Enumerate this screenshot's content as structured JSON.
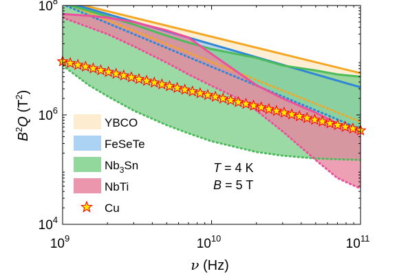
{
  "chart_data": {
    "type": "area",
    "title": "",
    "xlabel": {
      "main": "ν",
      "unit": "(Hz)"
    },
    "ylabel": {
      "base": "B",
      "power": "2",
      "rest": "Q",
      "unit_open": "(T",
      "unit_power": "2",
      "unit_close": ")"
    },
    "x_scale": "log",
    "y_scale": "log",
    "xlim": [
      1000000000.0,
      100000000000.0
    ],
    "ylim": [
      10000.0,
      100000000.0
    ],
    "x_ticks": [
      {
        "value": 1000000000.0,
        "base": "10",
        "exp": "9"
      },
      {
        "value": 10000000000.0,
        "base": "10",
        "exp": "10"
      },
      {
        "value": 100000000000.0,
        "base": "10",
        "exp": "11"
      }
    ],
    "y_ticks": [
      {
        "value": 10000.0,
        "base": "10",
        "exp": "4"
      },
      {
        "value": 1000000.0,
        "base": "10",
        "exp": "6"
      },
      {
        "value": 100000000.0,
        "base": "10",
        "exp": "8"
      }
    ],
    "grid": false,
    "legend_position": "left",
    "series": [
      {
        "name": "YBCO",
        "legend_main": "YBCO",
        "legend_sub": "",
        "legend_tail": "",
        "color": "#f5a623",
        "fill": "#fde9c8",
        "x": [
          1000000000.0,
          100000000000.0
        ],
        "upper": [
          125000000.0,
          5800000.0
        ],
        "lower": [
          115000000.0,
          750000.0
        ]
      },
      {
        "name": "FeSeTe",
        "legend_main": "FeSeTe",
        "legend_sub": "",
        "legend_tail": "",
        "color": "#2f86d6",
        "fill": "#9ecbf2",
        "x": [
          1000000000.0,
          100000000000.0
        ],
        "upper": [
          120000000.0,
          3200000.0
        ],
        "lower": [
          105000000.0,
          550000.0
        ]
      },
      {
        "name": "Nb3Sn",
        "legend_main": "Nb",
        "legend_sub": "3",
        "legend_tail": "Sn",
        "color": "#4cbb5a",
        "fill": "#7fd08a",
        "x": [
          1000000000.0,
          1500000000.0,
          2000000000.0,
          3000000000.0,
          5000000000.0,
          7000000000.0,
          10000000000.0,
          20000000000.0,
          30000000000.0,
          50000000000.0,
          70000000000.0,
          100000000000.0
        ],
        "upper": [
          110000000.0,
          80000000.0,
          63000000.0,
          45000000.0,
          28000000.0,
          21000000.0,
          16000000.0,
          11000000.0,
          8000000.0,
          6500000.0,
          5500000.0,
          5000000.0
        ],
        "lower": [
          8000000.0,
          3500000.0,
          2200000.0,
          1200000.0,
          650000.0,
          460000.0,
          330000.0,
          210000.0,
          180000.0,
          160000.0,
          155000.0,
          150000.0
        ]
      },
      {
        "name": "NbTi",
        "legend_main": "NbTi",
        "legend_sub": "",
        "legend_tail": "",
        "color": "#ec4f9b",
        "fill": "#e8849f",
        "x": [
          1000000000.0,
          1500000000.0,
          2000000000.0,
          3000000000.0,
          5000000000.0,
          7000000000.0,
          10000000000.0,
          15000000000.0,
          20000000000.0,
          30000000000.0,
          50000000000.0,
          70000000000.0,
          100000000000.0
        ],
        "upper": [
          70000000.0,
          65000000.0,
          60000000.0,
          50000000.0,
          35000000.0,
          26000000.0,
          13000000.0,
          6000000.0,
          3500000.0,
          2000000.0,
          1100000.0,
          700000.0,
          500000.0
        ],
        "lower": [
          60000000.0,
          40000000.0,
          30000000.0,
          18000000.0,
          9000000.0,
          5500000.0,
          3400000.0,
          2000000.0,
          1200000.0,
          500000.0,
          150000.0,
          70000.0,
          45000.0
        ]
      },
      {
        "name": "Cu",
        "legend_main": "Cu",
        "legend_sub": "",
        "legend_tail": "",
        "color": "#ff0000",
        "fill": "#ffea00",
        "marker": "star",
        "x_start": 1000000000.0,
        "x_end": 100000000000.0,
        "points": 40,
        "y_start": 9500000.0,
        "y_end": 520000.0
      }
    ],
    "annotations": [
      {
        "var": "T",
        "text": " = 4 K"
      },
      {
        "var": "B",
        "text": " = 5 T"
      }
    ]
  }
}
